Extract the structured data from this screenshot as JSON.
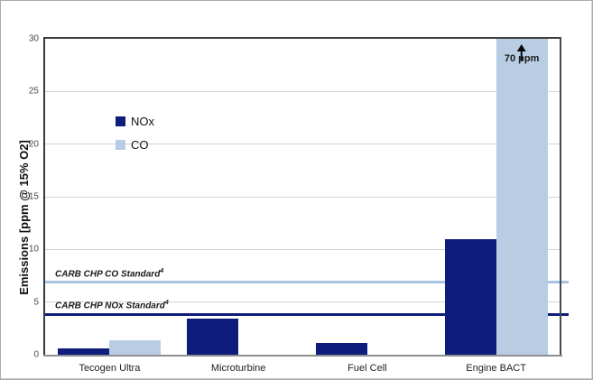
{
  "chart_data": {
    "type": "bar",
    "title": "",
    "ylabel": "Emissions [ppm @ 15% O2]",
    "xlabel": "",
    "ylim": [
      0,
      30
    ],
    "yticks": [
      0,
      5,
      10,
      15,
      20,
      25,
      30
    ],
    "grid": "horizontal",
    "legend_position": "inside-top-left",
    "categories": [
      "Tecogen Ultra",
      "Microturbine",
      "Fuel Cell",
      "Engine BACT"
    ],
    "series": [
      {
        "name": "NOx",
        "color": "#0e1d7c",
        "values": [
          0.6,
          3.4,
          1.1,
          11
        ]
      },
      {
        "name": "CO",
        "color": "#b8cce4",
        "values": [
          1.4,
          0,
          0,
          70
        ]
      }
    ],
    "ref_lines": [
      {
        "label": "CARB CHP CO Standard",
        "footnote": "4",
        "value": 6.9,
        "color": "#a8c3e0"
      },
      {
        "label": "CARB CHP NOx Standard",
        "footnote": "4",
        "value": 3.8,
        "color": "#0e1d7c"
      }
    ],
    "annotations": [
      {
        "target": "Engine BACT CO bar (clipped at 30)",
        "symbol": "up-arrow",
        "text": "70 ppm"
      }
    ]
  },
  "colors": {
    "gridline": "#d2d2d2",
    "plot_border": "#3f3f3f",
    "axis_bottom": "#8f8f8f",
    "tick_text": "#4a4a4a",
    "background": "#ffffff"
  }
}
